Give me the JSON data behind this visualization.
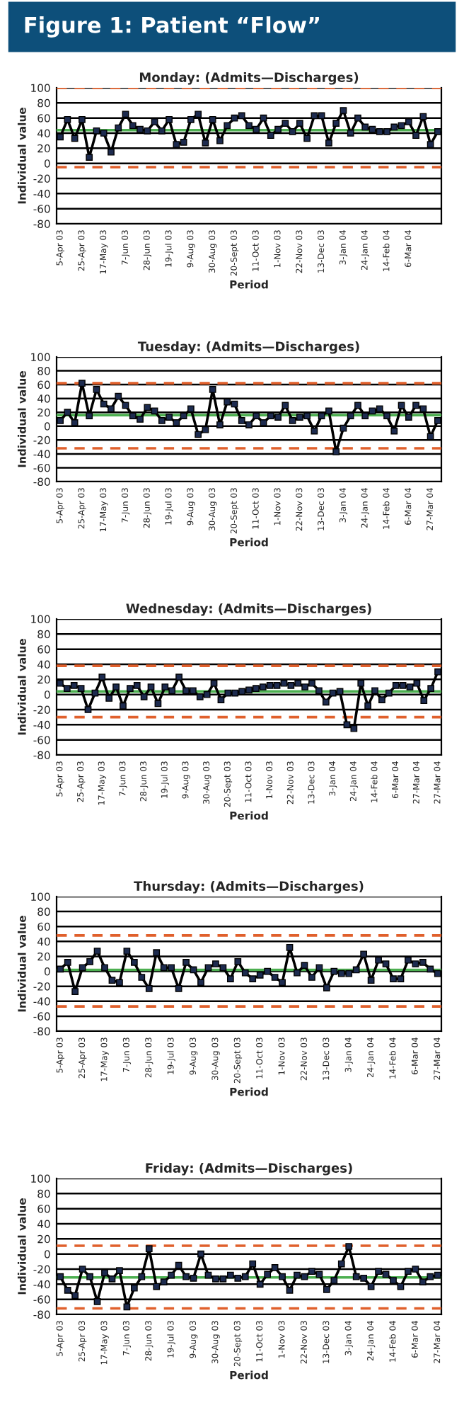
{
  "chart_data": [
    {
      "type": "line",
      "title": "Monday: (Admits—Discharges)",
      "xlabel": "Period",
      "ylabel": "Individual value",
      "annotations": [
        "Figure 1: Patient “Flow”"
      ],
      "categories": [
        "5-Apr 03",
        null,
        null,
        "25-Apr 03",
        null,
        null,
        "17-May 03",
        null,
        null,
        "7-Jun 03",
        null,
        null,
        "28-Jun 03",
        null,
        null,
        "19-Jul 03",
        null,
        null,
        "9-Aug 03",
        null,
        null,
        "30-Aug 03",
        null,
        null,
        "20-Sept 03",
        null,
        null,
        "11-Oct 03",
        null,
        null,
        "1-Nov 03",
        null,
        null,
        "22-Nov 03",
        null,
        null,
        "13-Dec 03",
        null,
        null,
        "3-Jan 04",
        null,
        null,
        "24-Jan 04",
        null,
        null,
        "14-Feb 04",
        null,
        null,
        "6-Mar 04",
        null,
        null,
        null,
        null
      ],
      "series": [
        {
          "color": "#000000",
          "values": [
            35,
            58,
            33,
            58,
            8,
            43,
            40,
            15,
            47,
            65,
            50,
            45,
            43,
            55,
            43,
            58,
            25,
            28,
            58,
            65,
            27,
            58,
            30,
            50,
            60,
            63,
            50,
            45,
            60,
            37,
            45,
            53,
            42,
            53,
            33,
            63,
            63,
            27,
            53,
            70,
            40,
            60,
            48,
            45,
            42,
            42,
            48,
            50,
            55,
            37,
            62,
            25,
            42
          ]
        }
      ],
      "ref_lines": [
        {
          "axis": "y",
          "value": 100,
          "color": "#e0602c",
          "line_style": "dashed"
        },
        {
          "axis": "y",
          "value": -5,
          "color": "#e0602c",
          "line_style": "dashed"
        },
        {
          "axis": "y",
          "value": 44,
          "color": "#4caf50",
          "line_style": "solid"
        }
      ],
      "ylim": [
        -80,
        100
      ],
      "yticks": [
        -80,
        -60,
        -40,
        -20,
        0,
        20,
        40,
        60,
        80,
        100
      ],
      "grid": "y",
      "marker": "square",
      "line_style": "solid"
    },
    {
      "type": "line",
      "title": "Tuesday: (Admits—Discharges)",
      "xlabel": "Period",
      "ylabel": "Individual value",
      "categories": [
        "5-Apr 03",
        null,
        null,
        "25-Apr 03",
        null,
        null,
        "17-May 03",
        null,
        null,
        "7-Jun 03",
        null,
        null,
        "28-Jun 03",
        null,
        null,
        "19-Jul 03",
        null,
        null,
        "9-Aug 03",
        null,
        null,
        "30-Aug 03",
        null,
        null,
        "20-Sept 03",
        null,
        null,
        "11-Oct 03",
        null,
        null,
        "1-Nov 03",
        null,
        null,
        "22-Nov 03",
        null,
        null,
        "13-Dec 03",
        null,
        null,
        "3-Jan 04",
        null,
        null,
        "24-Jan 04",
        null,
        null,
        "14-Feb 04",
        null,
        null,
        "6-Mar 04",
        null,
        null,
        "27-Mar 04",
        null
      ],
      "series": [
        {
          "color": "#000000",
          "values": [
            8,
            20,
            5,
            62,
            15,
            53,
            32,
            25,
            43,
            30,
            15,
            10,
            27,
            22,
            8,
            13,
            5,
            15,
            25,
            -12,
            -5,
            53,
            2,
            35,
            32,
            8,
            2,
            15,
            5,
            15,
            13,
            30,
            8,
            13,
            15,
            -7,
            15,
            22,
            -37,
            -3,
            15,
            30,
            15,
            22,
            25,
            15,
            -7,
            30,
            13,
            30,
            25,
            -15,
            8
          ]
        }
      ],
      "ref_lines": [
        {
          "axis": "y",
          "value": 62,
          "color": "#e0602c",
          "line_style": "dashed"
        },
        {
          "axis": "y",
          "value": -32,
          "color": "#e0602c",
          "line_style": "dashed"
        },
        {
          "axis": "y",
          "value": 16,
          "color": "#4caf50",
          "line_style": "solid"
        }
      ],
      "ylim": [
        -80,
        100
      ],
      "yticks": [
        -80,
        -60,
        -40,
        -20,
        0,
        20,
        40,
        60,
        80,
        100
      ],
      "grid": "y",
      "marker": "square",
      "line_style": "solid"
    },
    {
      "type": "line",
      "title": "Wednesday: (Admits—Discharges)",
      "xlabel": "Period",
      "ylabel": "Individual value",
      "categories": [
        "5-Apr 03",
        null,
        null,
        "25-Apr 03",
        null,
        null,
        "17-May 03",
        null,
        null,
        "7-Jun 03",
        null,
        null,
        "28-Jun 03",
        null,
        null,
        "19-Jul 03",
        null,
        null,
        "9-Aug 03",
        null,
        null,
        "30-Aug 03",
        null,
        null,
        "20-Sept 03",
        null,
        null,
        "11-Oct 03",
        null,
        null,
        "1-Nov 03",
        null,
        null,
        "22-Nov 03",
        null,
        null,
        "13-Dec 03",
        null,
        null,
        "3-Jan 04",
        null,
        null,
        "24-Jan 04",
        null,
        null,
        "14-Feb 04",
        null,
        null,
        "6-Mar 04",
        null,
        null,
        "27-Mar 04",
        null,
        null,
        "27-Mar 04"
      ],
      "series": [
        {
          "color": "#000000",
          "values": [
            15,
            8,
            12,
            8,
            -20,
            2,
            23,
            -5,
            10,
            -15,
            8,
            12,
            -3,
            10,
            -12,
            10,
            5,
            23,
            5,
            5,
            -3,
            0,
            15,
            -7,
            2,
            2,
            4,
            6,
            8,
            10,
            12,
            12,
            15,
            12,
            15,
            10,
            15,
            5,
            -10,
            2,
            4,
            -40,
            -45,
            15,
            -15,
            5,
            -7,
            2,
            12,
            12,
            10,
            15,
            -8,
            8,
            30
          ]
        }
      ],
      "ref_lines": [
        {
          "axis": "y",
          "value": 38,
          "color": "#e0602c",
          "line_style": "dashed"
        },
        {
          "axis": "y",
          "value": -30,
          "color": "#e0602c",
          "line_style": "dashed"
        },
        {
          "axis": "y",
          "value": 4,
          "color": "#4caf50",
          "line_style": "solid"
        }
      ],
      "ylim": [
        -80,
        100
      ],
      "yticks": [
        -80,
        -60,
        -40,
        -20,
        0,
        20,
        40,
        60,
        80,
        100
      ],
      "grid": "y",
      "marker": "square",
      "line_style": "solid"
    },
    {
      "type": "line",
      "title": "Thursday: (Admits—Discharges)",
      "xlabel": "Period",
      "ylabel": "Individual value",
      "categories": [
        "5-Apr 03",
        null,
        null,
        "25-Apr 03",
        null,
        null,
        "17-May 03",
        null,
        null,
        "7-Jun 03",
        null,
        null,
        "28-Jun 03",
        null,
        null,
        "19-Jul 03",
        null,
        null,
        "9-Aug 03",
        null,
        null,
        "30-Aug 03",
        null,
        null,
        "20-Sept 03",
        null,
        null,
        "11-Oct 03",
        null,
        null,
        "1-Nov 03",
        null,
        null,
        "22-Nov 03",
        null,
        null,
        "13-Dec 03",
        null,
        null,
        "3-Jan 04",
        null,
        null,
        "24-Jan 04",
        null,
        null,
        "14-Feb 04",
        null,
        null,
        "6-Mar 04",
        null,
        null,
        "27-Mar 04"
      ],
      "series": [
        {
          "color": "#000000",
          "values": [
            3,
            12,
            -27,
            5,
            13,
            27,
            5,
            -12,
            -15,
            27,
            12,
            -8,
            -23,
            25,
            5,
            5,
            -23,
            12,
            2,
            -15,
            5,
            10,
            5,
            -10,
            13,
            -2,
            -10,
            -5,
            0,
            -8,
            -15,
            32,
            -2,
            8,
            -8,
            5,
            -22,
            0,
            -3,
            -3,
            2,
            23,
            -12,
            15,
            10,
            -10,
            -10,
            15,
            10,
            12,
            3,
            -3
          ]
        }
      ],
      "ref_lines": [
        {
          "axis": "y",
          "value": 48,
          "color": "#e0602c",
          "line_style": "dashed"
        },
        {
          "axis": "y",
          "value": -47,
          "color": "#e0602c",
          "line_style": "dashed"
        },
        {
          "axis": "y",
          "value": 2,
          "color": "#4caf50",
          "line_style": "solid"
        }
      ],
      "ylim": [
        -80,
        100
      ],
      "yticks": [
        -80,
        -60,
        -40,
        -20,
        0,
        20,
        40,
        60,
        80,
        100
      ],
      "grid": "y",
      "marker": "square",
      "line_style": "solid"
    },
    {
      "type": "line",
      "title": "Friday: (Admits—Discharges)",
      "xlabel": "Period",
      "ylabel": "Individual value",
      "categories": [
        "5-Apr 03",
        null,
        null,
        "25-Apr 03",
        null,
        null,
        "17-May 03",
        null,
        null,
        "7-Jun 03",
        null,
        null,
        "28-Jun 03",
        null,
        null,
        "19-Jul 03",
        null,
        null,
        "9-Aug 03",
        null,
        null,
        "30-Aug 03",
        null,
        null,
        "20-Sept 03",
        null,
        null,
        "11-Oct 03",
        null,
        null,
        "1-Nov 03",
        null,
        null,
        "22-Nov 03",
        null,
        null,
        "13-Dec 03",
        null,
        null,
        "3-Jan 04",
        null,
        null,
        "24-Jan 04",
        null,
        null,
        "14-Feb 04",
        null,
        null,
        "6-Mar 04",
        null,
        null,
        "27-Mar 04"
      ],
      "series": [
        {
          "color": "#000000",
          "values": [
            -30,
            -48,
            -55,
            -20,
            -30,
            -63,
            -25,
            -33,
            -22,
            -70,
            -45,
            -30,
            7,
            -43,
            -37,
            -28,
            -15,
            -30,
            -32,
            0,
            -28,
            -33,
            -33,
            -28,
            -32,
            -30,
            -13,
            -40,
            -27,
            -18,
            -30,
            -48,
            -28,
            -30,
            -23,
            -27,
            -47,
            -35,
            -13,
            10,
            -30,
            -32,
            -43,
            -23,
            -27,
            -35,
            -43,
            -23,
            -20,
            -37,
            -30,
            -28
          ]
        }
      ],
      "ref_lines": [
        {
          "axis": "y",
          "value": 11,
          "color": "#e0602c",
          "line_style": "dashed"
        },
        {
          "axis": "y",
          "value": -72,
          "color": "#e0602c",
          "line_style": "dashed"
        },
        {
          "axis": "y",
          "value": -31,
          "color": "#4caf50",
          "line_style": "solid"
        }
      ],
      "ylim": [
        -80,
        100
      ],
      "yticks": [
        -80,
        -60,
        -40,
        -20,
        0,
        20,
        40,
        60,
        80,
        100
      ],
      "grid": "y",
      "marker": "square",
      "line_style": "solid"
    }
  ]
}
